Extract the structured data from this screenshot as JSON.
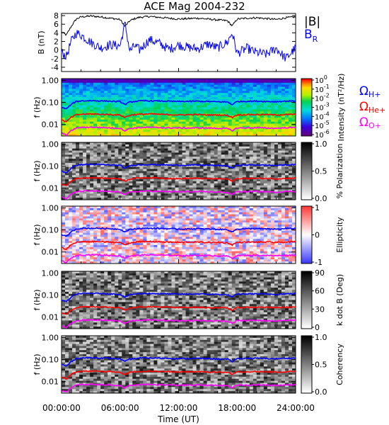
{
  "chart_data": [
    {
      "type": "line",
      "title": "ACE Mag 2004-232",
      "ylabel": "B (nT)",
      "ylim": [
        -5,
        8.5
      ],
      "yticks": [
        "8",
        "6",
        "4",
        "2",
        "0",
        "-2",
        "-4"
      ],
      "yticks_values": [
        8,
        6,
        4,
        2,
        0,
        -2,
        -4
      ],
      "legend": "right",
      "series": [
        {
          "name": "|B|",
          "color": "#000000",
          "x": [
            0,
            0.5,
            1.0,
            1.5,
            2.0,
            3.0,
            4.0,
            5.0,
            6.0,
            6.5,
            7.0,
            7.5,
            8.0,
            9.0,
            10.0,
            11.0,
            12.0,
            13.0,
            14.0,
            15.0,
            16.0,
            17.0,
            17.5,
            18.0,
            19.0,
            20.0,
            21.0,
            22.0,
            23.0,
            24.0
          ],
          "values": [
            4.2,
            3.5,
            5.5,
            7.2,
            7.7,
            7.9,
            7.7,
            7.4,
            7.1,
            5.5,
            6.8,
            7.3,
            7.6,
            7.8,
            7.6,
            7.4,
            7.2,
            7.3,
            7.4,
            7.2,
            7.0,
            6.8,
            5.6,
            7.2,
            7.4,
            7.5,
            7.3,
            7.1,
            7.5,
            7.7
          ]
        },
        {
          "name_main": "B",
          "name_sub": "R",
          "color": "#0000ff",
          "x": [
            0,
            0.5,
            1.0,
            1.5,
            2.0,
            3.0,
            4.0,
            5.0,
            6.0,
            6.5,
            7.0,
            7.5,
            8.0,
            9.0,
            10.0,
            11.0,
            12.0,
            13.0,
            14.0,
            15.0,
            16.0,
            17.0,
            17.5,
            18.0,
            19.0,
            20.0,
            21.0,
            22.0,
            23.0,
            24.0
          ],
          "values": [
            -0.5,
            -1.5,
            2.0,
            4.0,
            3.5,
            1.8,
            0.5,
            1.2,
            1.0,
            6.2,
            -0.3,
            1.0,
            0.0,
            2.4,
            1.6,
            0.2,
            1.2,
            0.6,
            0.3,
            1.4,
            0.5,
            1.8,
            4.0,
            -0.8,
            0.4,
            -0.6,
            -1.0,
            0.4,
            -2.0,
            0.5
          ]
        }
      ]
    },
    {
      "type": "heatmap",
      "ylabel": "f (Hz)",
      "yticks": [
        "1.00",
        "0.10",
        "0.01"
      ],
      "yticks_values": [
        1.0,
        0.1,
        0.01
      ],
      "ylim": [
        0.003,
        1.2
      ],
      "yscale": "log",
      "colorbar": {
        "label": "Intensity (nT²/Hz)",
        "scale": "log",
        "range": [
          1e-06,
          1
        ],
        "ticks": [
          "10",
          "10",
          "10",
          "10",
          "10",
          "10",
          "10"
        ],
        "tick_exponents": [
          "0",
          "-1",
          "-2",
          "-3",
          "-4",
          "-5",
          "-6"
        ],
        "colormap": "rainbow"
      },
      "gyro_legend": [
        {
          "main": "Ω",
          "sub": "H+",
          "color": "#0000ff"
        },
        {
          "main": "Ω",
          "sub": "He+",
          "color": "#ff0000"
        },
        {
          "main": "Ω",
          "sub": "O+",
          "color": "#ff00ff"
        }
      ]
    },
    {
      "type": "heatmap",
      "ylabel": "f (Hz)",
      "yticks": [
        "1.00",
        "0.10",
        "0.01"
      ],
      "yscale": "log",
      "colorbar": {
        "label": "% Polarization",
        "range": [
          0,
          1
        ],
        "ticks": [
          "1.0",
          "0.5",
          "0.0"
        ],
        "colormap": "gray"
      }
    },
    {
      "type": "heatmap",
      "ylabel": "f (Hz)",
      "yticks": [
        "1.00",
        "0.10",
        "0.01"
      ],
      "yscale": "log",
      "colorbar": {
        "label": "Ellipticity",
        "range": [
          -1,
          1
        ],
        "ticks": [
          "1",
          "0",
          "-1"
        ],
        "colormap": "blue-white-red"
      }
    },
    {
      "type": "heatmap",
      "ylabel": "f (Hz)",
      "yticks": [
        "1.00",
        "0.10",
        "0.01"
      ],
      "yscale": "log",
      "colorbar": {
        "label": "k dot B (Deg)",
        "range": [
          0,
          90
        ],
        "ticks": [
          "90",
          "60",
          "30",
          "0"
        ],
        "colormap": "gray"
      }
    },
    {
      "type": "heatmap",
      "ylabel": "f (Hz)",
      "yticks": [
        "1.00",
        "0.10",
        "0.01"
      ],
      "yscale": "log",
      "xlabel": "Time (UT)",
      "xticks": [
        "00:00:00",
        "06:00:00",
        "12:00:00",
        "18:00:00",
        "24:00:00"
      ],
      "xticks_values": [
        0,
        6,
        12,
        18,
        24
      ],
      "xlim": [
        0,
        24
      ],
      "colorbar": {
        "label": "Coherency",
        "range": [
          0,
          1
        ],
        "ticks": [
          "1.0",
          "0.5",
          "0.0"
        ],
        "colormap": "gray"
      }
    }
  ],
  "gyrofrequencies": {
    "x": [
      0,
      0.5,
      1.0,
      1.5,
      2.0,
      3.0,
      4.0,
      5.0,
      6.0,
      6.5,
      7.0,
      7.5,
      8.0,
      9.0,
      10.0,
      11.0,
      12.0,
      13.0,
      14.0,
      15.0,
      16.0,
      17.0,
      17.5,
      18.0,
      19.0,
      20.0,
      21.0,
      22.0,
      23.0,
      24.0
    ],
    "H+": [
      0.06,
      0.05,
      0.08,
      0.11,
      0.118,
      0.12,
      0.118,
      0.113,
      0.108,
      0.08,
      0.104,
      0.111,
      0.116,
      0.119,
      0.116,
      0.113,
      0.11,
      0.111,
      0.113,
      0.11,
      0.107,
      0.104,
      0.08,
      0.11,
      0.113,
      0.114,
      0.111,
      0.108,
      0.114,
      0.117
    ],
    "He+": [
      0.016,
      0.013,
      0.021,
      0.027,
      0.029,
      0.03,
      0.029,
      0.028,
      0.027,
      0.021,
      0.026,
      0.028,
      0.029,
      0.03,
      0.029,
      0.028,
      0.027,
      0.028,
      0.028,
      0.027,
      0.027,
      0.026,
      0.021,
      0.027,
      0.028,
      0.028,
      0.028,
      0.027,
      0.028,
      0.029
    ],
    "O+": [
      0.004,
      0.0033,
      0.0052,
      0.0068,
      0.0073,
      0.0075,
      0.0073,
      0.007,
      0.0067,
      0.0052,
      0.0065,
      0.0069,
      0.0072,
      0.0074,
      0.0072,
      0.007,
      0.0069,
      0.0069,
      0.007,
      0.0069,
      0.0067,
      0.0065,
      0.0052,
      0.0069,
      0.007,
      0.0071,
      0.0069,
      0.0067,
      0.0071,
      0.0073
    ]
  }
}
